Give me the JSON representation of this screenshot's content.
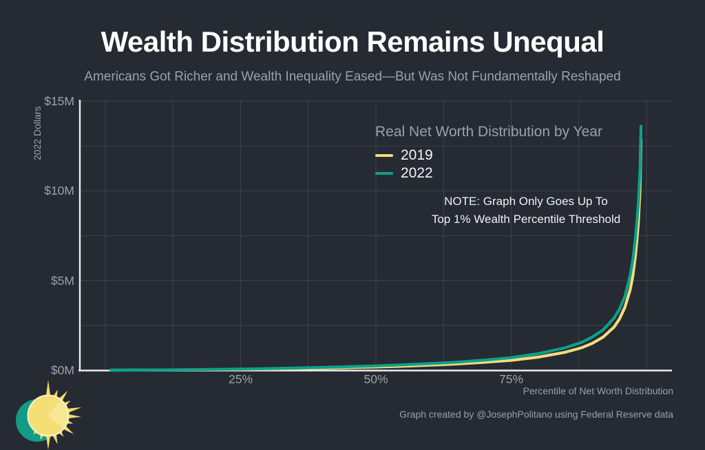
{
  "title": "Wealth Distribution Remains Unequal",
  "subtitle": "Americans Got Richer and Wealth Inequality Eased—But Was Not Fundamentally Reshaped",
  "legend": {
    "title": "Real Net Worth Distribution by Year",
    "items": [
      {
        "label": "2019",
        "color": "#F2DC7E"
      },
      {
        "label": "2022",
        "color": "#0DA08B"
      }
    ]
  },
  "note": {
    "line1": "NOTE: Graph Only Goes Up To",
    "line2": "Top 1% Wealth Percentile Threshold"
  },
  "axes": {
    "y_title": "2022 Dollars",
    "x_title": "Percentile of Net Worth Distribution"
  },
  "caption": "Graph created by @JosephPolitano using Federal Reserve data",
  "icons": {
    "sun_logo": "sun-logo"
  },
  "colors": {
    "background": "#262A33",
    "grid": "#3B404A",
    "axis_line": "#EDEEEF",
    "muted_text": "#9AA1AB",
    "text": "#FFFFFF",
    "series_2019": "#F2DC7E",
    "series_2022": "#0DA08B",
    "sun_yellow": "#F4DF76",
    "sun_ray_yellow": "#F3DA64",
    "sun_teal": "#129B85"
  },
  "chart_data": {
    "type": "line",
    "title": "Real Net Worth Distribution by Year",
    "xlabel": "Percentile of Net Worth Distribution",
    "ylabel": "2022 Dollars",
    "units": "millions of 2022 dollars",
    "xlim": [
      0,
      100
    ],
    "ylim": [
      0,
      15
    ],
    "grid": true,
    "x_grid_step": 12.5,
    "y_grid_step": 2.5,
    "legend_position": "top-right-inside",
    "x": [
      1,
      5,
      10,
      15,
      20,
      25,
      30,
      35,
      40,
      45,
      50,
      55,
      60,
      65,
      70,
      75,
      80,
      85,
      88,
      90,
      92,
      94,
      95,
      96,
      97,
      97.5,
      98,
      98.5,
      98.8,
      99
    ],
    "series": [
      {
        "name": "2019",
        "values": [
          0,
          0.002,
          0.008,
          0.018,
          0.028,
          0.04,
          0.06,
          0.085,
          0.11,
          0.145,
          0.175,
          0.22,
          0.28,
          0.35,
          0.44,
          0.55,
          0.73,
          1.0,
          1.25,
          1.5,
          1.85,
          2.4,
          2.85,
          3.5,
          4.5,
          5.3,
          6.5,
          8.2,
          10.1,
          12.85
        ]
      },
      {
        "name": "2022",
        "values": [
          0,
          0.004,
          0.013,
          0.03,
          0.045,
          0.065,
          0.09,
          0.12,
          0.155,
          0.2,
          0.24,
          0.3,
          0.37,
          0.45,
          0.56,
          0.7,
          0.92,
          1.25,
          1.55,
          1.85,
          2.25,
          2.9,
          3.4,
          4.1,
          5.3,
          6.2,
          7.5,
          9.3,
          11.2,
          13.6
        ]
      }
    ],
    "x_ticks": [
      {
        "value": 25,
        "label": "25%"
      },
      {
        "value": 50,
        "label": "50%"
      },
      {
        "value": 75,
        "label": "75%"
      }
    ],
    "y_ticks": [
      {
        "value": 0,
        "label": "$0M"
      },
      {
        "value": 5,
        "label": "$5M"
      },
      {
        "value": 10,
        "label": "$10M"
      },
      {
        "value": 15,
        "label": "$15M"
      }
    ]
  }
}
